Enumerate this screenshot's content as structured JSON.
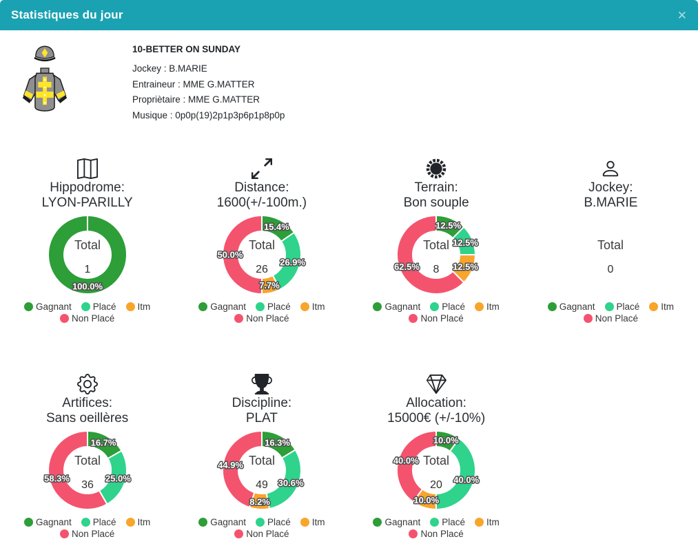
{
  "header": {
    "title": "Statistiques du jour",
    "close_glyph": "✕"
  },
  "horse": {
    "name": "10-BETTER ON SUNDAY",
    "details": [
      "Jockey : B.MARIE",
      "Entraineur : MME G.MATTER",
      "Propriètaire : MME G.MATTER",
      "Musique : 0p0p(19)2p1p3p6p1p8p0p"
    ]
  },
  "colors": {
    "header_bg": "#1BA2B2",
    "gagnant": "#2D9E38",
    "place": "#2FD38C",
    "itm": "#F8A52C",
    "non_place": "#F4536E"
  },
  "legend": {
    "items": [
      {
        "key": "gagnant",
        "label": "Gagnant"
      },
      {
        "key": "place",
        "label": "Placé"
      },
      {
        "key": "itm",
        "label": "Itm"
      },
      {
        "key": "non_place",
        "label": "Non Placé"
      }
    ]
  },
  "charts": [
    {
      "type": "donut",
      "icon": "map-icon",
      "title_line1": "Hippodrome:",
      "title_line2": "LYON-PARILLY",
      "total_label": "Total",
      "total_value": "1",
      "slices": [
        {
          "key": "gagnant",
          "pct": 100.0,
          "label": "100.0%"
        }
      ]
    },
    {
      "type": "donut",
      "icon": "expand-arrows-icon",
      "title_line1": "Distance:",
      "title_line2": "1600(+/-100m.)",
      "total_label": "Total",
      "total_value": "26",
      "slices": [
        {
          "key": "gagnant",
          "pct": 15.4,
          "label": "15.4%"
        },
        {
          "key": "place",
          "pct": 26.9,
          "label": "26.9%"
        },
        {
          "key": "itm",
          "pct": 7.7,
          "label": "7.7%"
        },
        {
          "key": "non_place",
          "pct": 50.0,
          "label": "50.0%"
        }
      ]
    },
    {
      "type": "donut",
      "icon": "sun-icon",
      "title_line1": "Terrain:",
      "title_line2": "Bon souple",
      "total_label": "Total",
      "total_value": "8",
      "slices": [
        {
          "key": "gagnant",
          "pct": 12.5,
          "label": "12.5%"
        },
        {
          "key": "place",
          "pct": 12.5,
          "label": "12.5%"
        },
        {
          "key": "itm",
          "pct": 12.5,
          "label": "12.5%"
        },
        {
          "key": "non_place",
          "pct": 62.5,
          "label": "62.5%"
        }
      ]
    },
    {
      "type": "donut",
      "icon": "person-icon",
      "title_line1": "Jockey:",
      "title_line2": "B.MARIE",
      "total_label": "Total",
      "total_value": "0",
      "slices": []
    },
    {
      "type": "donut",
      "icon": "gear-icon",
      "title_line1": "Artifices:",
      "title_line2": "Sans oeillères",
      "total_label": "Total",
      "total_value": "36",
      "slices": [
        {
          "key": "gagnant",
          "pct": 16.7,
          "label": "16.7%"
        },
        {
          "key": "place",
          "pct": 25.0,
          "label": "25.0%"
        },
        {
          "key": "non_place",
          "pct": 58.3,
          "label": "58.3%"
        }
      ]
    },
    {
      "type": "donut",
      "icon": "trophy-icon",
      "title_line1": "Discipline:",
      "title_line2": "PLAT",
      "total_label": "Total",
      "total_value": "49",
      "slices": [
        {
          "key": "gagnant",
          "pct": 16.3,
          "label": "16.3%"
        },
        {
          "key": "place",
          "pct": 30.6,
          "label": "30.6%"
        },
        {
          "key": "itm",
          "pct": 8.2,
          "label": "8.2%"
        },
        {
          "key": "non_place",
          "pct": 44.9,
          "label": "44.9%"
        }
      ]
    },
    {
      "type": "donut",
      "icon": "diamond-icon",
      "title_line1": "Allocation:",
      "title_line2": "15000€ (+/-10%)",
      "total_label": "Total",
      "total_value": "20",
      "slices": [
        {
          "key": "gagnant",
          "pct": 10.0,
          "label": "10.0%"
        },
        {
          "key": "place",
          "pct": 40.0,
          "label": "40.0%"
        },
        {
          "key": "itm",
          "pct": 10.0,
          "label": "10.0%"
        },
        {
          "key": "non_place",
          "pct": 40.0,
          "label": "40.0%"
        }
      ]
    }
  ]
}
